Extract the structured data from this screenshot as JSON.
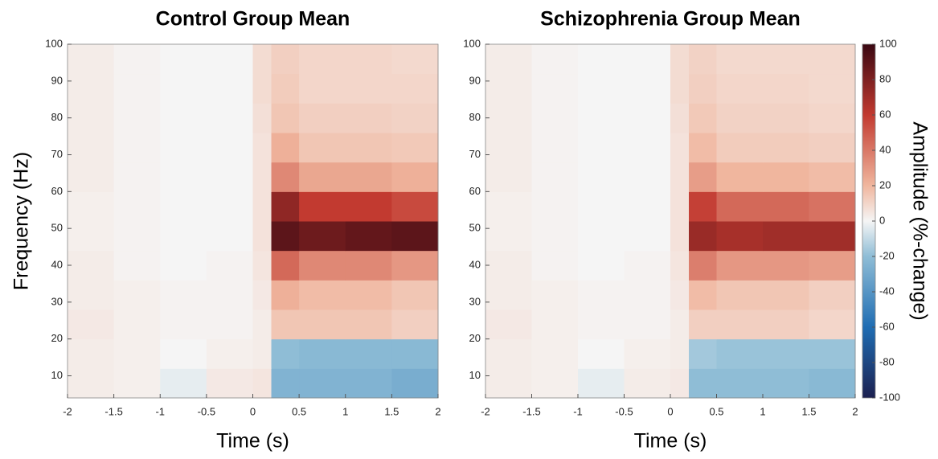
{
  "chart_data": [
    {
      "type": "heatmap",
      "title": "Control Group Mean",
      "x_label": "Time (s)",
      "y_label": "Frequency (Hz)",
      "x_edges": [
        -2,
        -1.5,
        -1,
        -0.5,
        0,
        0.2,
        0.5,
        1,
        1.5,
        2
      ],
      "y_edges": [
        4,
        12,
        20,
        28,
        36,
        44,
        52,
        60,
        68,
        76,
        84,
        92,
        100
      ],
      "values": [
        [
          3,
          2,
          -3,
          4,
          5,
          -25,
          -25,
          -25,
          -28
        ],
        [
          3,
          2,
          0,
          2,
          3,
          -20,
          -22,
          -22,
          -22
        ],
        [
          4,
          2,
          1,
          1,
          3,
          15,
          15,
          15,
          12
        ],
        [
          3,
          2,
          1,
          1,
          4,
          22,
          18,
          18,
          15
        ],
        [
          3,
          1,
          0,
          1,
          5,
          45,
          35,
          35,
          30
        ],
        [
          2,
          1,
          0,
          0,
          6,
          90,
          85,
          88,
          90
        ],
        [
          2,
          1,
          0,
          0,
          6,
          75,
          60,
          60,
          55
        ],
        [
          3,
          1,
          0,
          0,
          6,
          35,
          25,
          25,
          22
        ],
        [
          3,
          1,
          0,
          0,
          6,
          22,
          15,
          15,
          14
        ],
        [
          3,
          1,
          0,
          0,
          7,
          15,
          12,
          12,
          11
        ],
        [
          3,
          1,
          0,
          0,
          8,
          13,
          10,
          10,
          10
        ],
        [
          3,
          1,
          0,
          0,
          8,
          12,
          10,
          10,
          9
        ]
      ],
      "xlim": [
        -2,
        2
      ],
      "ylim": [
        4,
        100
      ],
      "xticks": [
        -2,
        -1.5,
        -1,
        -0.5,
        0,
        0.5,
        1,
        1.5,
        2
      ],
      "yticks": [
        10,
        20,
        30,
        40,
        50,
        60,
        70,
        80,
        90,
        100
      ]
    },
    {
      "type": "heatmap",
      "title": "Schizophrenia Group Mean",
      "x_label": "Time (s)",
      "x_edges": [
        -2,
        -1.5,
        -1,
        -0.5,
        0,
        0.2,
        0.5,
        1,
        1.5,
        2
      ],
      "y_edges": [
        4,
        12,
        20,
        28,
        36,
        44,
        52,
        60,
        68,
        76,
        84,
        92,
        100
      ],
      "values": [
        [
          3,
          2,
          -3,
          3,
          4,
          -20,
          -20,
          -20,
          -22
        ],
        [
          3,
          2,
          0,
          2,
          3,
          -16,
          -18,
          -18,
          -18
        ],
        [
          4,
          2,
          1,
          1,
          3,
          12,
          12,
          12,
          10
        ],
        [
          3,
          2,
          1,
          1,
          4,
          18,
          15,
          15,
          12
        ],
        [
          3,
          1,
          0,
          1,
          5,
          38,
          30,
          30,
          28
        ],
        [
          2,
          1,
          0,
          0,
          6,
          72,
          68,
          70,
          70
        ],
        [
          2,
          1,
          0,
          0,
          6,
          58,
          45,
          45,
          42
        ],
        [
          3,
          1,
          0,
          0,
          6,
          28,
          20,
          20,
          18
        ],
        [
          3,
          1,
          0,
          0,
          6,
          18,
          13,
          13,
          12
        ],
        [
          3,
          1,
          0,
          0,
          7,
          14,
          11,
          11,
          10
        ],
        [
          3,
          1,
          0,
          0,
          8,
          12,
          10,
          10,
          9
        ],
        [
          3,
          1,
          0,
          0,
          8,
          11,
          9,
          9,
          9
        ]
      ],
      "xlim": [
        -2,
        2
      ],
      "ylim": [
        4,
        100
      ],
      "xticks": [
        -2,
        -1.5,
        -1,
        -0.5,
        0,
        0.5,
        1,
        1.5,
        2
      ],
      "yticks": [
        10,
        20,
        30,
        40,
        50,
        60,
        70,
        80,
        90,
        100
      ],
      "colorbar": {
        "label": "Amplitude (%-change)",
        "lim": [
          -100,
          100
        ],
        "ticks": [
          -100,
          -80,
          -60,
          -40,
          -20,
          0,
          20,
          40,
          60,
          80,
          100
        ],
        "colormap": [
          {
            "value": -100,
            "color": "#1c2050"
          },
          {
            "value": -60,
            "color": "#1f6db3"
          },
          {
            "value": -20,
            "color": "#8fbdd6"
          },
          {
            "value": 0,
            "color": "#f5f5f5"
          },
          {
            "value": 20,
            "color": "#f0b69e"
          },
          {
            "value": 60,
            "color": "#c23a30"
          },
          {
            "value": 100,
            "color": "#3a0812"
          }
        ]
      }
    }
  ]
}
